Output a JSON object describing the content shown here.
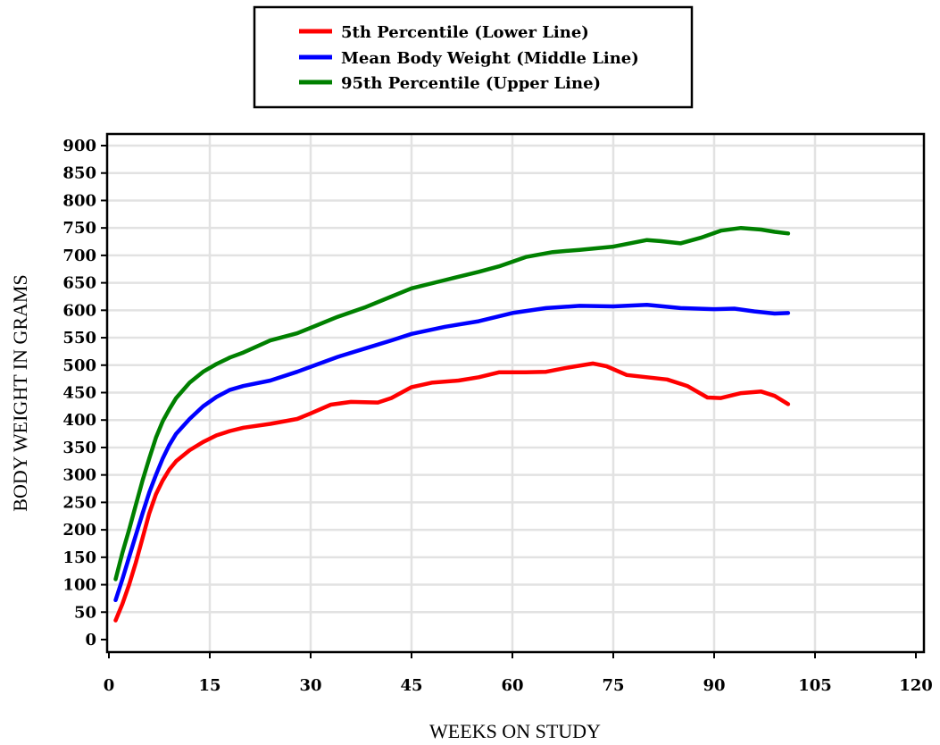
{
  "chart_data": {
    "type": "line",
    "xlabel": "WEEKS ON STUDY",
    "ylabel": "BODY WEIGHT IN GRAMS",
    "xlim": [
      0,
      120
    ],
    "ylim": [
      0,
      900
    ],
    "x_ticks": [
      0,
      15,
      30,
      45,
      60,
      75,
      90,
      105,
      120
    ],
    "y_ticks": [
      0,
      50,
      100,
      150,
      200,
      250,
      300,
      350,
      400,
      450,
      500,
      550,
      600,
      650,
      700,
      750,
      800,
      850,
      900
    ],
    "grid": true,
    "legend_position": "top-center",
    "series": [
      {
        "name": "5th Percentile (Lower Line)",
        "color": "#ff0000",
        "points": [
          [
            1,
            35
          ],
          [
            2,
            65
          ],
          [
            3,
            100
          ],
          [
            4,
            140
          ],
          [
            5,
            185
          ],
          [
            6,
            230
          ],
          [
            7,
            265
          ],
          [
            8,
            290
          ],
          [
            9,
            310
          ],
          [
            10,
            325
          ],
          [
            12,
            345
          ],
          [
            14,
            360
          ],
          [
            16,
            372
          ],
          [
            18,
            380
          ],
          [
            20,
            386
          ],
          [
            24,
            393
          ],
          [
            28,
            402
          ],
          [
            30,
            412
          ],
          [
            33,
            428
          ],
          [
            36,
            433
          ],
          [
            40,
            432
          ],
          [
            42,
            440
          ],
          [
            45,
            460
          ],
          [
            48,
            468
          ],
          [
            52,
            472
          ],
          [
            55,
            478
          ],
          [
            58,
            487
          ],
          [
            62,
            487
          ],
          [
            65,
            488
          ],
          [
            68,
            495
          ],
          [
            72,
            503
          ],
          [
            74,
            498
          ],
          [
            77,
            482
          ],
          [
            80,
            478
          ],
          [
            83,
            474
          ],
          [
            86,
            462
          ],
          [
            89,
            441
          ],
          [
            91,
            440
          ],
          [
            94,
            449
          ],
          [
            97,
            452
          ],
          [
            99,
            444
          ],
          [
            101,
            429
          ]
        ]
      },
      {
        "name": "Mean Body Weight (Middle Line)",
        "color": "#0000ff",
        "points": [
          [
            1,
            72
          ],
          [
            2,
            110
          ],
          [
            3,
            150
          ],
          [
            4,
            190
          ],
          [
            5,
            230
          ],
          [
            6,
            268
          ],
          [
            7,
            300
          ],
          [
            8,
            330
          ],
          [
            9,
            355
          ],
          [
            10,
            375
          ],
          [
            12,
            402
          ],
          [
            14,
            425
          ],
          [
            16,
            442
          ],
          [
            18,
            455
          ],
          [
            20,
            462
          ],
          [
            24,
            472
          ],
          [
            28,
            488
          ],
          [
            30,
            497
          ],
          [
            34,
            515
          ],
          [
            38,
            530
          ],
          [
            42,
            545
          ],
          [
            45,
            557
          ],
          [
            50,
            570
          ],
          [
            55,
            580
          ],
          [
            60,
            595
          ],
          [
            65,
            604
          ],
          [
            70,
            608
          ],
          [
            75,
            607
          ],
          [
            80,
            610
          ],
          [
            85,
            604
          ],
          [
            90,
            602
          ],
          [
            93,
            603
          ],
          [
            96,
            598
          ],
          [
            99,
            594
          ],
          [
            101,
            595
          ]
        ]
      },
      {
        "name": "95th Percentile (Upper Line)",
        "color": "#008000",
        "points": [
          [
            1,
            110
          ],
          [
            2,
            158
          ],
          [
            3,
            200
          ],
          [
            4,
            245
          ],
          [
            5,
            290
          ],
          [
            6,
            330
          ],
          [
            7,
            368
          ],
          [
            8,
            398
          ],
          [
            9,
            420
          ],
          [
            10,
            440
          ],
          [
            12,
            468
          ],
          [
            14,
            488
          ],
          [
            16,
            502
          ],
          [
            18,
            514
          ],
          [
            20,
            523
          ],
          [
            24,
            545
          ],
          [
            28,
            558
          ],
          [
            30,
            568
          ],
          [
            34,
            588
          ],
          [
            38,
            605
          ],
          [
            42,
            625
          ],
          [
            45,
            640
          ],
          [
            50,
            655
          ],
          [
            55,
            670
          ],
          [
            58,
            680
          ],
          [
            62,
            697
          ],
          [
            66,
            706
          ],
          [
            70,
            710
          ],
          [
            75,
            716
          ],
          [
            80,
            728
          ],
          [
            82,
            726
          ],
          [
            85,
            722
          ],
          [
            88,
            732
          ],
          [
            91,
            745
          ],
          [
            94,
            750
          ],
          [
            97,
            747
          ],
          [
            99,
            743
          ],
          [
            101,
            740
          ]
        ]
      }
    ]
  }
}
